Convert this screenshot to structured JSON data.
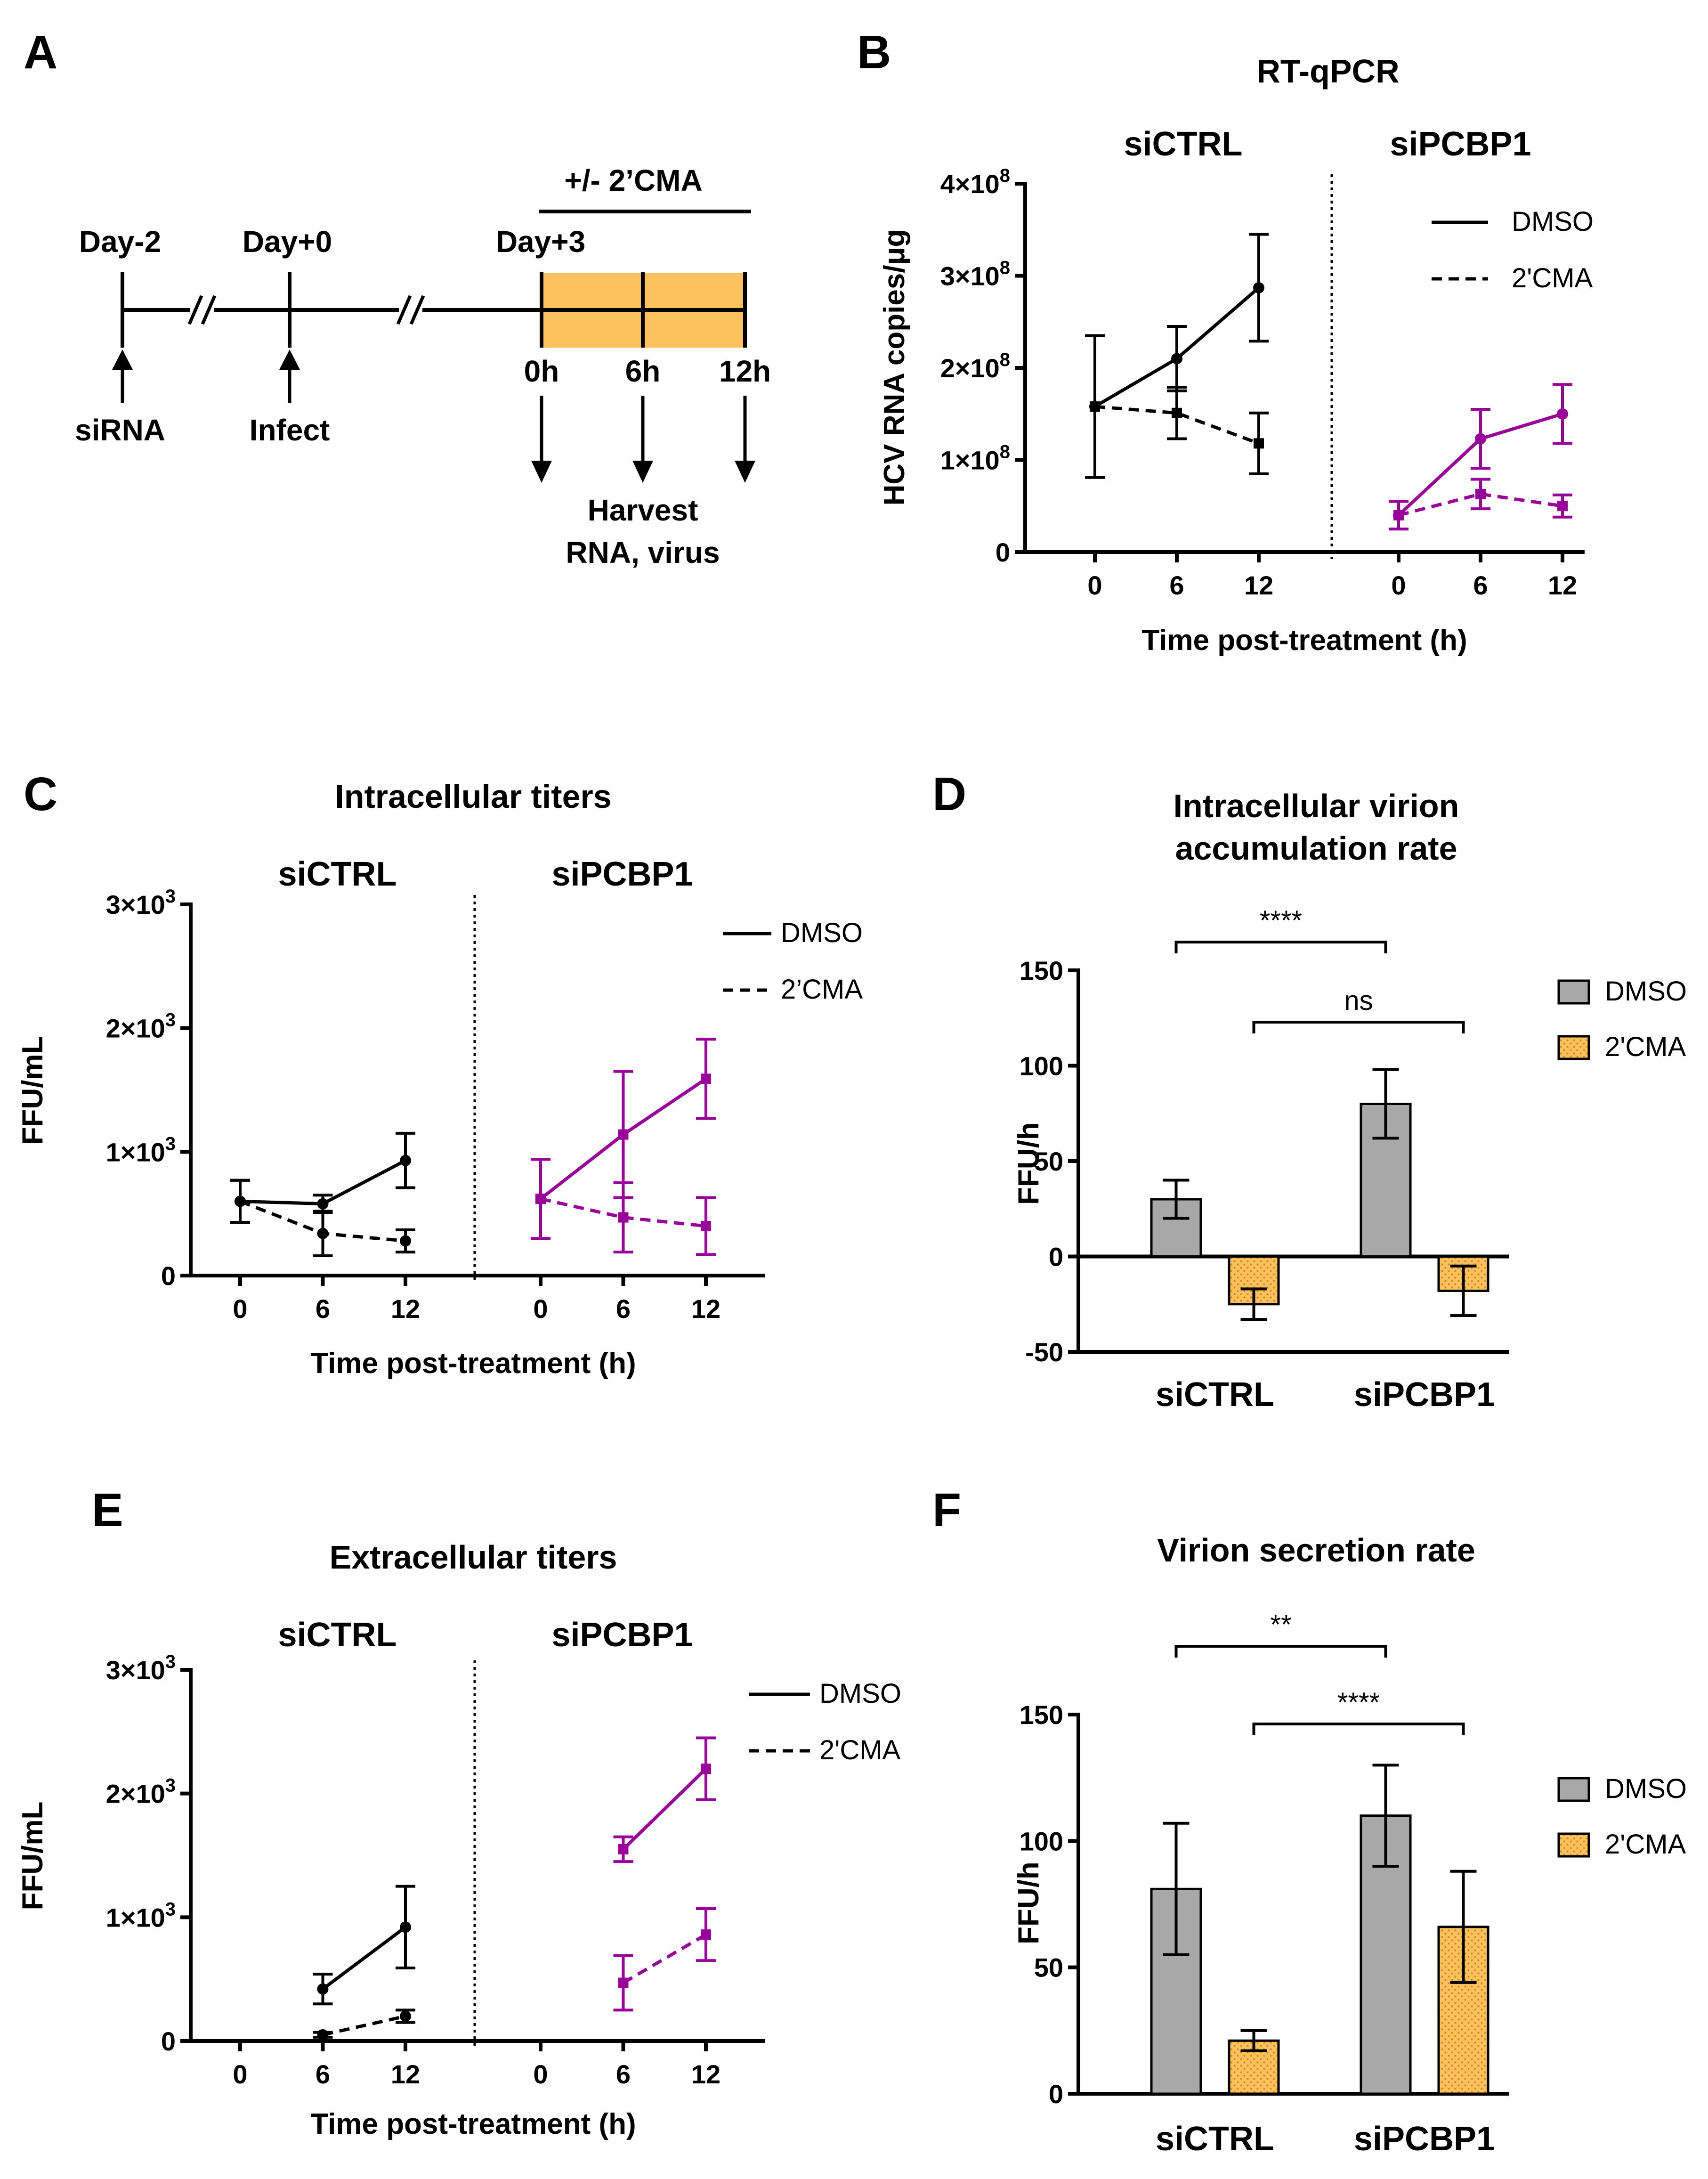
{
  "colors": {
    "black": "#000000",
    "purple": "#990099",
    "gray": "#a8a8a8",
    "orange": "#fdc15e"
  },
  "panelA": {
    "label": "A",
    "days": [
      "Day-2",
      "Day+0",
      "Day+3"
    ],
    "below": [
      "siRNA",
      "Infect"
    ],
    "treatment": "+/- 2’CMA",
    "hours": [
      "0h",
      "6h",
      "12h"
    ],
    "harvest": [
      "Harvest",
      "RNA, virus"
    ]
  },
  "chart_data": [
    {
      "id": "B",
      "type": "line",
      "label": "B",
      "title": "RT-qPCR",
      "groups": [
        "siCTRL",
        "siPCBP1"
      ],
      "ylabel": "HCV RNA copies/μg",
      "xlabel": "Time post-treatment (h)",
      "ylim": [
        0,
        400000000
      ],
      "yticks": [
        {
          "v": 0,
          "b": "0",
          "e": ""
        },
        {
          "v": 100000000,
          "b": "1×10",
          "e": "8"
        },
        {
          "v": 200000000,
          "b": "2×10",
          "e": "8"
        },
        {
          "v": 300000000,
          "b": "3×10",
          "e": "8"
        },
        {
          "v": 400000000,
          "b": "4×10",
          "e": "8"
        }
      ],
      "x": [
        0,
        6,
        12
      ],
      "legend": [
        "DMSO",
        "2'CMA"
      ],
      "series": [
        {
          "name": "siCTRL DMSO",
          "group": 0,
          "dash": false,
          "color": "black",
          "marker": "circle",
          "x": [
            0,
            6,
            12
          ],
          "values": [
            158000000,
            210000000,
            287000000
          ],
          "err": [
            77000000,
            35000000,
            58000000
          ]
        },
        {
          "name": "siCTRL 2'CMA",
          "group": 0,
          "dash": true,
          "color": "black",
          "marker": "square",
          "x": [
            0,
            6,
            12
          ],
          "values": [
            158000000,
            151000000,
            118000000
          ],
          "err": [
            77000000,
            28000000,
            33000000
          ]
        },
        {
          "name": "siPCBP1 DMSO",
          "group": 1,
          "dash": false,
          "color": "purple",
          "marker": "circle",
          "x": [
            0,
            6,
            12
          ],
          "values": [
            40000000,
            123000000,
            150000000
          ],
          "err": [
            15000000,
            32000000,
            32000000
          ]
        },
        {
          "name": "siPCBP1 2'CMA",
          "group": 1,
          "dash": true,
          "color": "purple",
          "marker": "square",
          "x": [
            0,
            6,
            12
          ],
          "values": [
            40000000,
            63000000,
            50000000
          ],
          "err": [
            15000000,
            16000000,
            12000000
          ]
        }
      ]
    },
    {
      "id": "C",
      "type": "line",
      "label": "C",
      "title": "Intracellular titers",
      "groups": [
        "siCTRL",
        "siPCBP1"
      ],
      "ylabel": "FFU/mL",
      "xlabel": "Time post-treatment (h)",
      "ylim": [
        0,
        3000
      ],
      "yticks": [
        {
          "v": 0,
          "b": "0",
          "e": ""
        },
        {
          "v": 1000,
          "b": "1×10",
          "e": "3"
        },
        {
          "v": 2000,
          "b": "2×10",
          "e": "3"
        },
        {
          "v": 3000,
          "b": "3×10",
          "e": "3"
        }
      ],
      "x": [
        0,
        6,
        12
      ],
      "legend": [
        "DMSO",
        "2’CMA"
      ],
      "series": [
        {
          "name": "siCTRL DMSO",
          "group": 0,
          "dash": false,
          "color": "black",
          "marker": "circle",
          "x": [
            0,
            6,
            12
          ],
          "values": [
            600,
            580,
            930
          ],
          "err": [
            170,
            70,
            220
          ]
        },
        {
          "name": "siCTRL 2'CMA",
          "group": 0,
          "dash": true,
          "color": "black",
          "marker": "circle",
          "x": [
            0,
            6,
            12
          ],
          "values": [
            600,
            340,
            280
          ],
          "err": [
            170,
            180,
            90
          ]
        },
        {
          "name": "siPCBP1 DMSO",
          "group": 1,
          "dash": false,
          "color": "purple",
          "marker": "square",
          "x": [
            0,
            6,
            12
          ],
          "values": [
            620,
            1140,
            1590
          ],
          "err": [
            320,
            510,
            320
          ]
        },
        {
          "name": "siPCBP1 2'CMA",
          "group": 1,
          "dash": true,
          "color": "purple",
          "marker": "square",
          "x": [
            0,
            6,
            12
          ],
          "values": [
            620,
            470,
            400
          ],
          "err": [
            320,
            280,
            230
          ]
        }
      ]
    },
    {
      "id": "D",
      "type": "bar",
      "label": "D",
      "title": [
        "Intracellular virion",
        "accumulation rate"
      ],
      "categories": [
        "siCTRL",
        "siPCBP1"
      ],
      "ylabel": "FFU/h",
      "ylim": [
        -50,
        150
      ],
      "yticks": [
        -50,
        0,
        50,
        100,
        150
      ],
      "legend": [
        "DMSO",
        "2'CMA"
      ],
      "series": [
        {
          "name": "DMSO",
          "color": "gray",
          "values": [
            30,
            80
          ],
          "err": [
            10,
            18
          ]
        },
        {
          "name": "2'CMA",
          "color": "orange",
          "values": [
            -25,
            -18
          ],
          "err": [
            8,
            13
          ]
        }
      ],
      "comparisons": [
        {
          "label": "****",
          "from": [
            0,
            0
          ],
          "to": [
            1,
            0
          ]
        },
        {
          "label": "ns",
          "from": [
            0,
            1
          ],
          "to": [
            1,
            1
          ]
        }
      ]
    },
    {
      "id": "E",
      "type": "line",
      "label": "E",
      "title": "Extracellular titers",
      "groups": [
        "siCTRL",
        "siPCBP1"
      ],
      "ylabel": "FFU/mL",
      "xlabel": "Time post-treatment (h)",
      "ylim": [
        0,
        3000
      ],
      "yticks": [
        {
          "v": 0,
          "b": "0",
          "e": ""
        },
        {
          "v": 1000,
          "b": "1×10",
          "e": "3"
        },
        {
          "v": 2000,
          "b": "2×10",
          "e": "3"
        },
        {
          "v": 3000,
          "b": "3×10",
          "e": "3"
        }
      ],
      "x": [
        0,
        6,
        12
      ],
      "legend": [
        "DMSO",
        "2'CMA"
      ],
      "series": [
        {
          "name": "siCTRL DMSO",
          "group": 0,
          "dash": false,
          "color": "black",
          "marker": "circle",
          "x": [
            6,
            12
          ],
          "values": [
            420,
            920
          ],
          "err": [
            120,
            330
          ]
        },
        {
          "name": "siCTRL 2'CMA",
          "group": 0,
          "dash": true,
          "color": "black",
          "marker": "circle",
          "x": [
            6,
            12
          ],
          "values": [
            50,
            200
          ],
          "err": [
            20,
            50
          ]
        },
        {
          "name": "siPCBP1 DMSO",
          "group": 1,
          "dash": false,
          "color": "purple",
          "marker": "square",
          "x": [
            6,
            12
          ],
          "values": [
            1550,
            2200
          ],
          "err": [
            100,
            250
          ]
        },
        {
          "name": "siPCBP1 2'CMA",
          "group": 1,
          "dash": true,
          "color": "purple",
          "marker": "square",
          "x": [
            6,
            12
          ],
          "values": [
            470,
            860
          ],
          "err": [
            220,
            210
          ]
        }
      ]
    },
    {
      "id": "F",
      "type": "bar",
      "label": "F",
      "title": [
        "Virion secretion rate"
      ],
      "categories": [
        "siCTRL",
        "siPCBP1"
      ],
      "ylabel": "FFU/h",
      "ylim": [
        0,
        150
      ],
      "yticks": [
        0,
        50,
        100,
        150
      ],
      "legend": [
        "DMSO",
        "2'CMA"
      ],
      "series": [
        {
          "name": "DMSO",
          "color": "gray",
          "values": [
            81,
            110
          ],
          "err": [
            26,
            20
          ]
        },
        {
          "name": "2'CMA",
          "color": "orange",
          "values": [
            21,
            66
          ],
          "err": [
            4,
            22
          ]
        }
      ],
      "comparisons": [
        {
          "label": "**",
          "from": [
            0,
            0
          ],
          "to": [
            1,
            0
          ]
        },
        {
          "label": "****",
          "from": [
            0,
            1
          ],
          "to": [
            1,
            1
          ]
        }
      ]
    }
  ]
}
